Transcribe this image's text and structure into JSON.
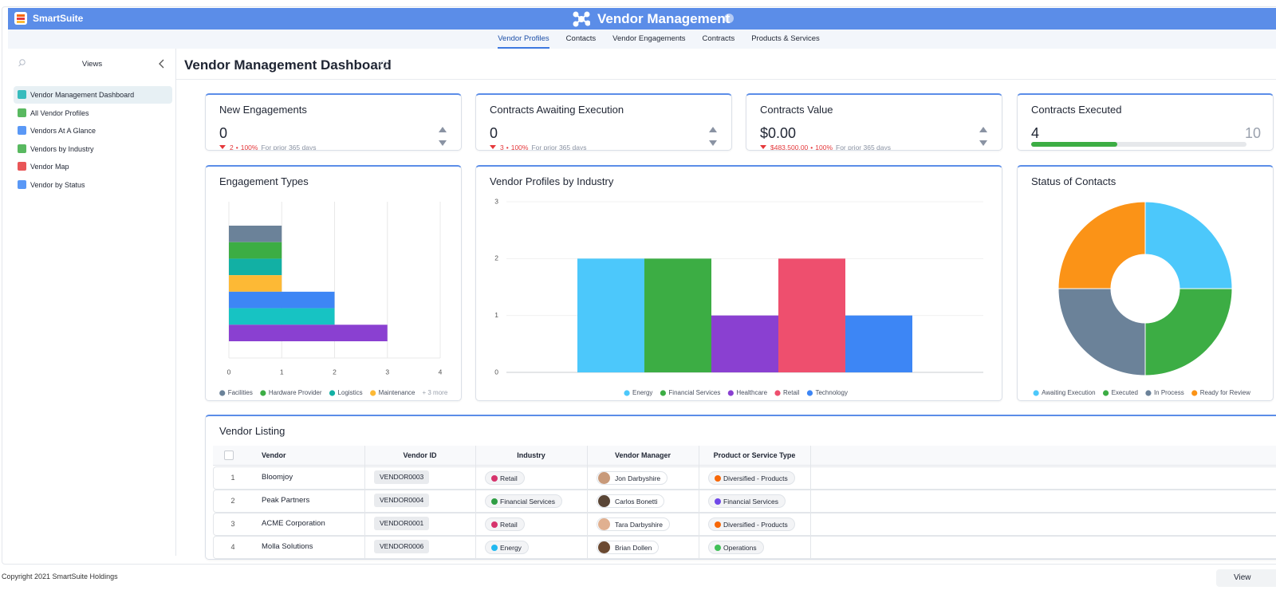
{
  "app": {
    "name": "SmartSuite"
  },
  "header": {
    "title": "Vendor Management"
  },
  "tabs": {
    "items": [
      "Vendor Profiles",
      "Contacts",
      "Vendor Engagements",
      "Contracts",
      "Products & Services"
    ],
    "active": 0
  },
  "sidebar": {
    "title": "Views",
    "items": [
      "Vendor Management Dashboard",
      "All Vendor Profiles",
      "Vendors At A Glance",
      "Vendors by Industry",
      "Vendor Map",
      "Vendor by Status"
    ],
    "active": 0
  },
  "dashboard": {
    "title": "Vendor Management Dashboard"
  },
  "kpis": [
    {
      "title": "New Engagements",
      "value": "0",
      "change": "2",
      "percent": "100%",
      "period": "For prior 365 days"
    },
    {
      "title": "Contracts Awaiting Execution",
      "value": "0",
      "change": "3",
      "percent": "100%",
      "period": "For prior 365 days"
    },
    {
      "title": "Contracts Value",
      "value": "$0.00",
      "change": "$483,500.00",
      "percent": "100%",
      "period": "For prior 365 days"
    },
    {
      "title": "Contracts Executed",
      "value": 4,
      "goal": 10,
      "color": "#3cad44"
    }
  ],
  "charts": [
    {
      "type": "hbar",
      "title": "Engagement Types",
      "categories": [
        "Facilities",
        "Hardware Provider",
        "Logistics",
        "Maintenance",
        null,
        null,
        null
      ],
      "values": [
        1,
        1,
        1,
        1,
        2,
        2,
        3
      ],
      "colors": [
        "#6b8299",
        "#3cad44",
        "#12b0a4",
        "#fdb935",
        "#3d86f5",
        "#17c3c3",
        "#8a40d1"
      ],
      "xlim": [
        0,
        4
      ],
      "xticks": [
        0,
        1,
        2,
        3,
        4
      ],
      "grid": true,
      "legend_more": "+ 3 more"
    },
    {
      "type": "bar",
      "title": "Vendor Profiles by Industry",
      "categories": [
        "Energy",
        "Financial Services",
        "Healthcare",
        "Retail",
        "Technology"
      ],
      "values": [
        2,
        2,
        1,
        2,
        1
      ],
      "colors": [
        "#4cc8fb",
        "#3cad44",
        "#8a40d1",
        "#ee4f6e",
        "#3d86f5"
      ],
      "ylim": [
        0,
        3
      ],
      "yticks": [
        0,
        1,
        2,
        3
      ],
      "grid": true
    },
    {
      "type": "donut",
      "title": "Status of Contacts",
      "categories": [
        "Awaiting Execution",
        "Executed",
        "In Process",
        "Ready for Review"
      ],
      "values": [
        1,
        1,
        1,
        1
      ],
      "colors": [
        "#4cc8fb",
        "#3cad44",
        "#6b8299",
        "#fb9317"
      ]
    }
  ],
  "table": {
    "title": "Vendor Listing",
    "columns": [
      "Vendor",
      "Vendor ID",
      "Industry",
      "Vendor Manager",
      "Product or Service Type"
    ],
    "rows": [
      {
        "n": "1",
        "vendor": "Bloomjoy",
        "id": "VENDOR0003",
        "industry": "Retail",
        "industry_color": "#d6336c",
        "manager": "Jon Darbyshire",
        "product": "Diversified - Products",
        "product_color": "#f76707"
      },
      {
        "n": "2",
        "vendor": "Peak Partners",
        "id": "VENDOR0004",
        "industry": "Financial Services",
        "industry_color": "#2f9e44",
        "manager": "Carlos Bonetti",
        "product": "Financial Services",
        "product_color": "#7048e8"
      },
      {
        "n": "3",
        "vendor": "ACME Corporation",
        "id": "VENDOR0001",
        "industry": "Retail",
        "industry_color": "#d6336c",
        "manager": "Tara Darbyshire",
        "product": "Diversified - Products",
        "product_color": "#f76707"
      },
      {
        "n": "4",
        "vendor": "Molla Solutions",
        "id": "VENDOR0006",
        "industry": "Energy",
        "industry_color": "#22b8f0",
        "manager": "Brian Dollen",
        "product": "Operations",
        "product_color": "#40c057"
      }
    ]
  },
  "footer": {
    "copyright": "Copyright 2021 SmartSuite Holdings",
    "button": "View"
  }
}
